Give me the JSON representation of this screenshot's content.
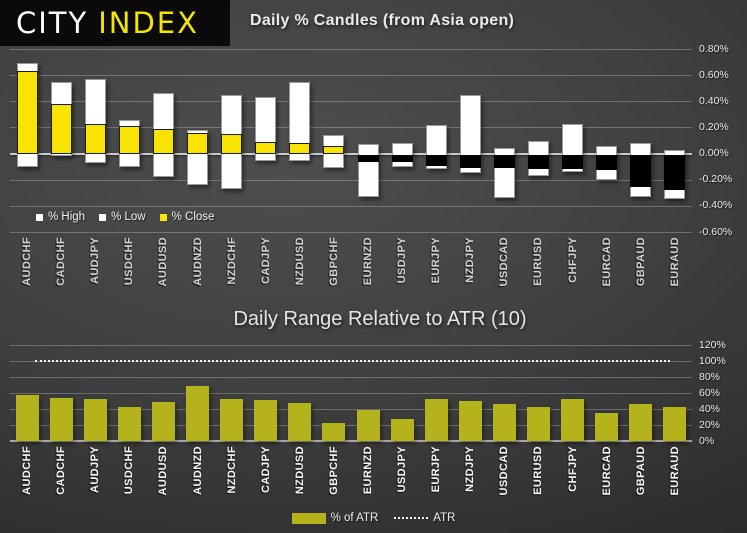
{
  "logo": {
    "city": "CITY",
    "index": "INDEX"
  },
  "colors": {
    "background": "#3e3e3e",
    "logo_bg": "#0a0a0a",
    "logo_city": "#ffffff",
    "logo_index": "#f6e500",
    "candle_range": "#ffffff",
    "close_positive": "#f8e400",
    "close_negative": "#000000",
    "atr_bar": "#b5b31b",
    "gridline": "rgba(255,255,255,0.25)",
    "zero_line": "#cccccc",
    "text": "#ececec"
  },
  "chart_data": [
    {
      "type": "bar",
      "subtype": "daily-percent-candles",
      "title": "Daily % Candles (from Asia open)",
      "categories": [
        "AUDCHF",
        "CADCHF",
        "AUDJPY",
        "USDCHF",
        "AUDUSD",
        "AUDNZD",
        "NZDCHF",
        "CADJPY",
        "NZDUSD",
        "GBPCHF",
        "EURNZD",
        "USDJPY",
        "EURJPY",
        "NZDJPY",
        "USDCAD",
        "EURUSD",
        "CHFJPY",
        "EURCAD",
        "GBPAUD",
        "EURAUD"
      ],
      "series": [
        {
          "name": "% High",
          "values": [
            0.69,
            0.55,
            0.57,
            0.26,
            0.46,
            0.18,
            0.45,
            0.43,
            0.55,
            0.14,
            0.07,
            0.08,
            0.22,
            0.45,
            0.04,
            0.1,
            0.23,
            0.06,
            0.08,
            0.03
          ]
        },
        {
          "name": "% Low",
          "values": [
            -0.1,
            -0.02,
            -0.07,
            -0.1,
            -0.18,
            -0.24,
            -0.27,
            -0.06,
            -0.06,
            -0.11,
            -0.33,
            -0.1,
            -0.12,
            -0.15,
            -0.34,
            -0.17,
            -0.14,
            -0.2,
            -0.33,
            -0.35
          ]
        },
        {
          "name": "% Close",
          "values": [
            0.63,
            0.38,
            0.23,
            0.21,
            0.19,
            0.16,
            0.15,
            0.09,
            0.08,
            0.06,
            -0.06,
            -0.06,
            -0.09,
            -0.1,
            -0.1,
            -0.11,
            -0.11,
            -0.12,
            -0.25,
            -0.27
          ]
        }
      ],
      "ylim": [
        -0.6,
        0.8
      ],
      "yticks": [
        0.8,
        0.6,
        0.4,
        0.2,
        0,
        -0.2,
        -0.4,
        -0.6
      ],
      "ytick_labels": [
        "0.80%",
        "0.60%",
        "0.40%",
        "0.20%",
        "0.00%",
        "-0.20%",
        "-0.40%",
        "-0.60%"
      ],
      "grid": true,
      "legend_position": "inside-bottom-left",
      "axis_position": "right"
    },
    {
      "type": "bar",
      "subtype": "range-vs-atr",
      "title": "Daily Range Relative to ATR (10)",
      "categories": [
        "AUDCHF",
        "CADCHF",
        "AUDJPY",
        "USDCHF",
        "AUDUSD",
        "AUDNZD",
        "NZDCHF",
        "CADJPY",
        "NZDUSD",
        "GBPCHF",
        "EURNZD",
        "USDJPY",
        "EURJPY",
        "NZDJPY",
        "USDCAD",
        "EURUSD",
        "CHFJPY",
        "EURCAD",
        "GBPAUD",
        "EURAUD"
      ],
      "series": [
        {
          "name": "% of ATR",
          "values": [
            58,
            54,
            52,
            43,
            49,
            69,
            52,
            51,
            48,
            23,
            39,
            27,
            52,
            50,
            46,
            42,
            53,
            35,
            46,
            43
          ]
        },
        {
          "name": "ATR",
          "type": "dotted-line",
          "value": 100
        }
      ],
      "ylim": [
        0,
        120
      ],
      "yticks": [
        120,
        100,
        80,
        60,
        40,
        20,
        0
      ],
      "ytick_labels": [
        "120%",
        "100%",
        "80%",
        "60%",
        "40%",
        "20%",
        "0%"
      ],
      "grid": true,
      "legend_position": "bottom-center",
      "axis_position": "right"
    }
  ]
}
